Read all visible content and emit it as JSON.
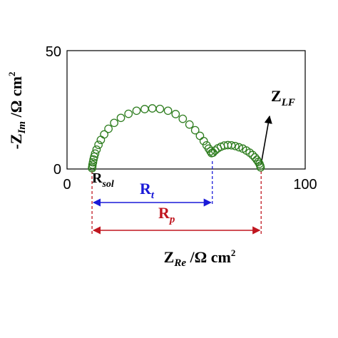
{
  "chart_data": {
    "type": "scatter",
    "title": "",
    "xlabel": {
      "main": "Z",
      "sub": "Re",
      "unit": " /Ω cm",
      "sup": "2"
    },
    "ylabel": {
      "main": "-Z",
      "sub": "Im",
      "unit": " /Ω cm",
      "sup": "2"
    },
    "xlim": [
      0,
      100
    ],
    "ylim": [
      0,
      50
    ],
    "xticks": [
      "0",
      "100"
    ],
    "yticks": [
      "0",
      "50"
    ],
    "grid": false,
    "colors": {
      "points": "#2e7d1f",
      "rt": "#1a1ad8",
      "rp": "#c0161f",
      "axis": "#000000"
    },
    "annotations": {
      "rsol": {
        "main": "R",
        "sub": "sol"
      },
      "rt": {
        "main": "R",
        "sub": "t"
      },
      "rp": {
        "main": "R",
        "sub": "p"
      },
      "zlf": {
        "main": "Z",
        "sub": "LF"
      }
    },
    "markers": {
      "rsol_x": 10.5,
      "rt_end_x": 61,
      "rp_end_x": 81.5
    },
    "series": [
      {
        "values": [
          [
            10.5,
            0.3
          ],
          [
            10.6,
            0.9
          ],
          [
            10.7,
            1.8
          ],
          [
            10.9,
            2.8
          ],
          [
            11.1,
            4.0
          ],
          [
            11.4,
            5.2
          ],
          [
            11.8,
            6.5
          ],
          [
            12.4,
            8.2
          ],
          [
            13.2,
            10.2
          ],
          [
            14.2,
            12.3
          ],
          [
            15.6,
            14.6
          ],
          [
            17.4,
            17.0
          ],
          [
            19.8,
            19.5
          ],
          [
            22.6,
            21.6
          ],
          [
            25.8,
            23.3
          ],
          [
            29.2,
            24.6
          ],
          [
            32.6,
            25.3
          ],
          [
            35.8,
            25.6
          ],
          [
            39.0,
            25.4
          ],
          [
            42.4,
            24.6
          ],
          [
            45.6,
            23.2
          ],
          [
            48.6,
            21.2
          ],
          [
            51.4,
            18.8
          ],
          [
            53.8,
            16.4
          ],
          [
            55.8,
            14.0
          ],
          [
            57.4,
            11.8
          ],
          [
            58.6,
            10.0
          ],
          [
            59.5,
            8.6
          ],
          [
            60.2,
            7.5
          ],
          [
            60.7,
            6.7
          ],
          [
            61.3,
            6.9
          ],
          [
            62.2,
            7.8
          ],
          [
            63.3,
            8.7
          ],
          [
            64.6,
            9.4
          ],
          [
            66.0,
            9.9
          ],
          [
            67.5,
            10.1
          ],
          [
            69.0,
            10.0
          ],
          [
            70.6,
            9.7
          ],
          [
            72.2,
            9.2
          ],
          [
            73.8,
            8.6
          ],
          [
            75.3,
            7.8
          ],
          [
            76.7,
            6.9
          ],
          [
            77.9,
            5.9
          ],
          [
            78.9,
            4.9
          ],
          [
            79.7,
            3.9
          ],
          [
            80.3,
            3.0
          ],
          [
            80.8,
            2.2
          ],
          [
            81.1,
            1.4
          ],
          [
            81.3,
            0.7
          ]
        ]
      }
    ]
  }
}
